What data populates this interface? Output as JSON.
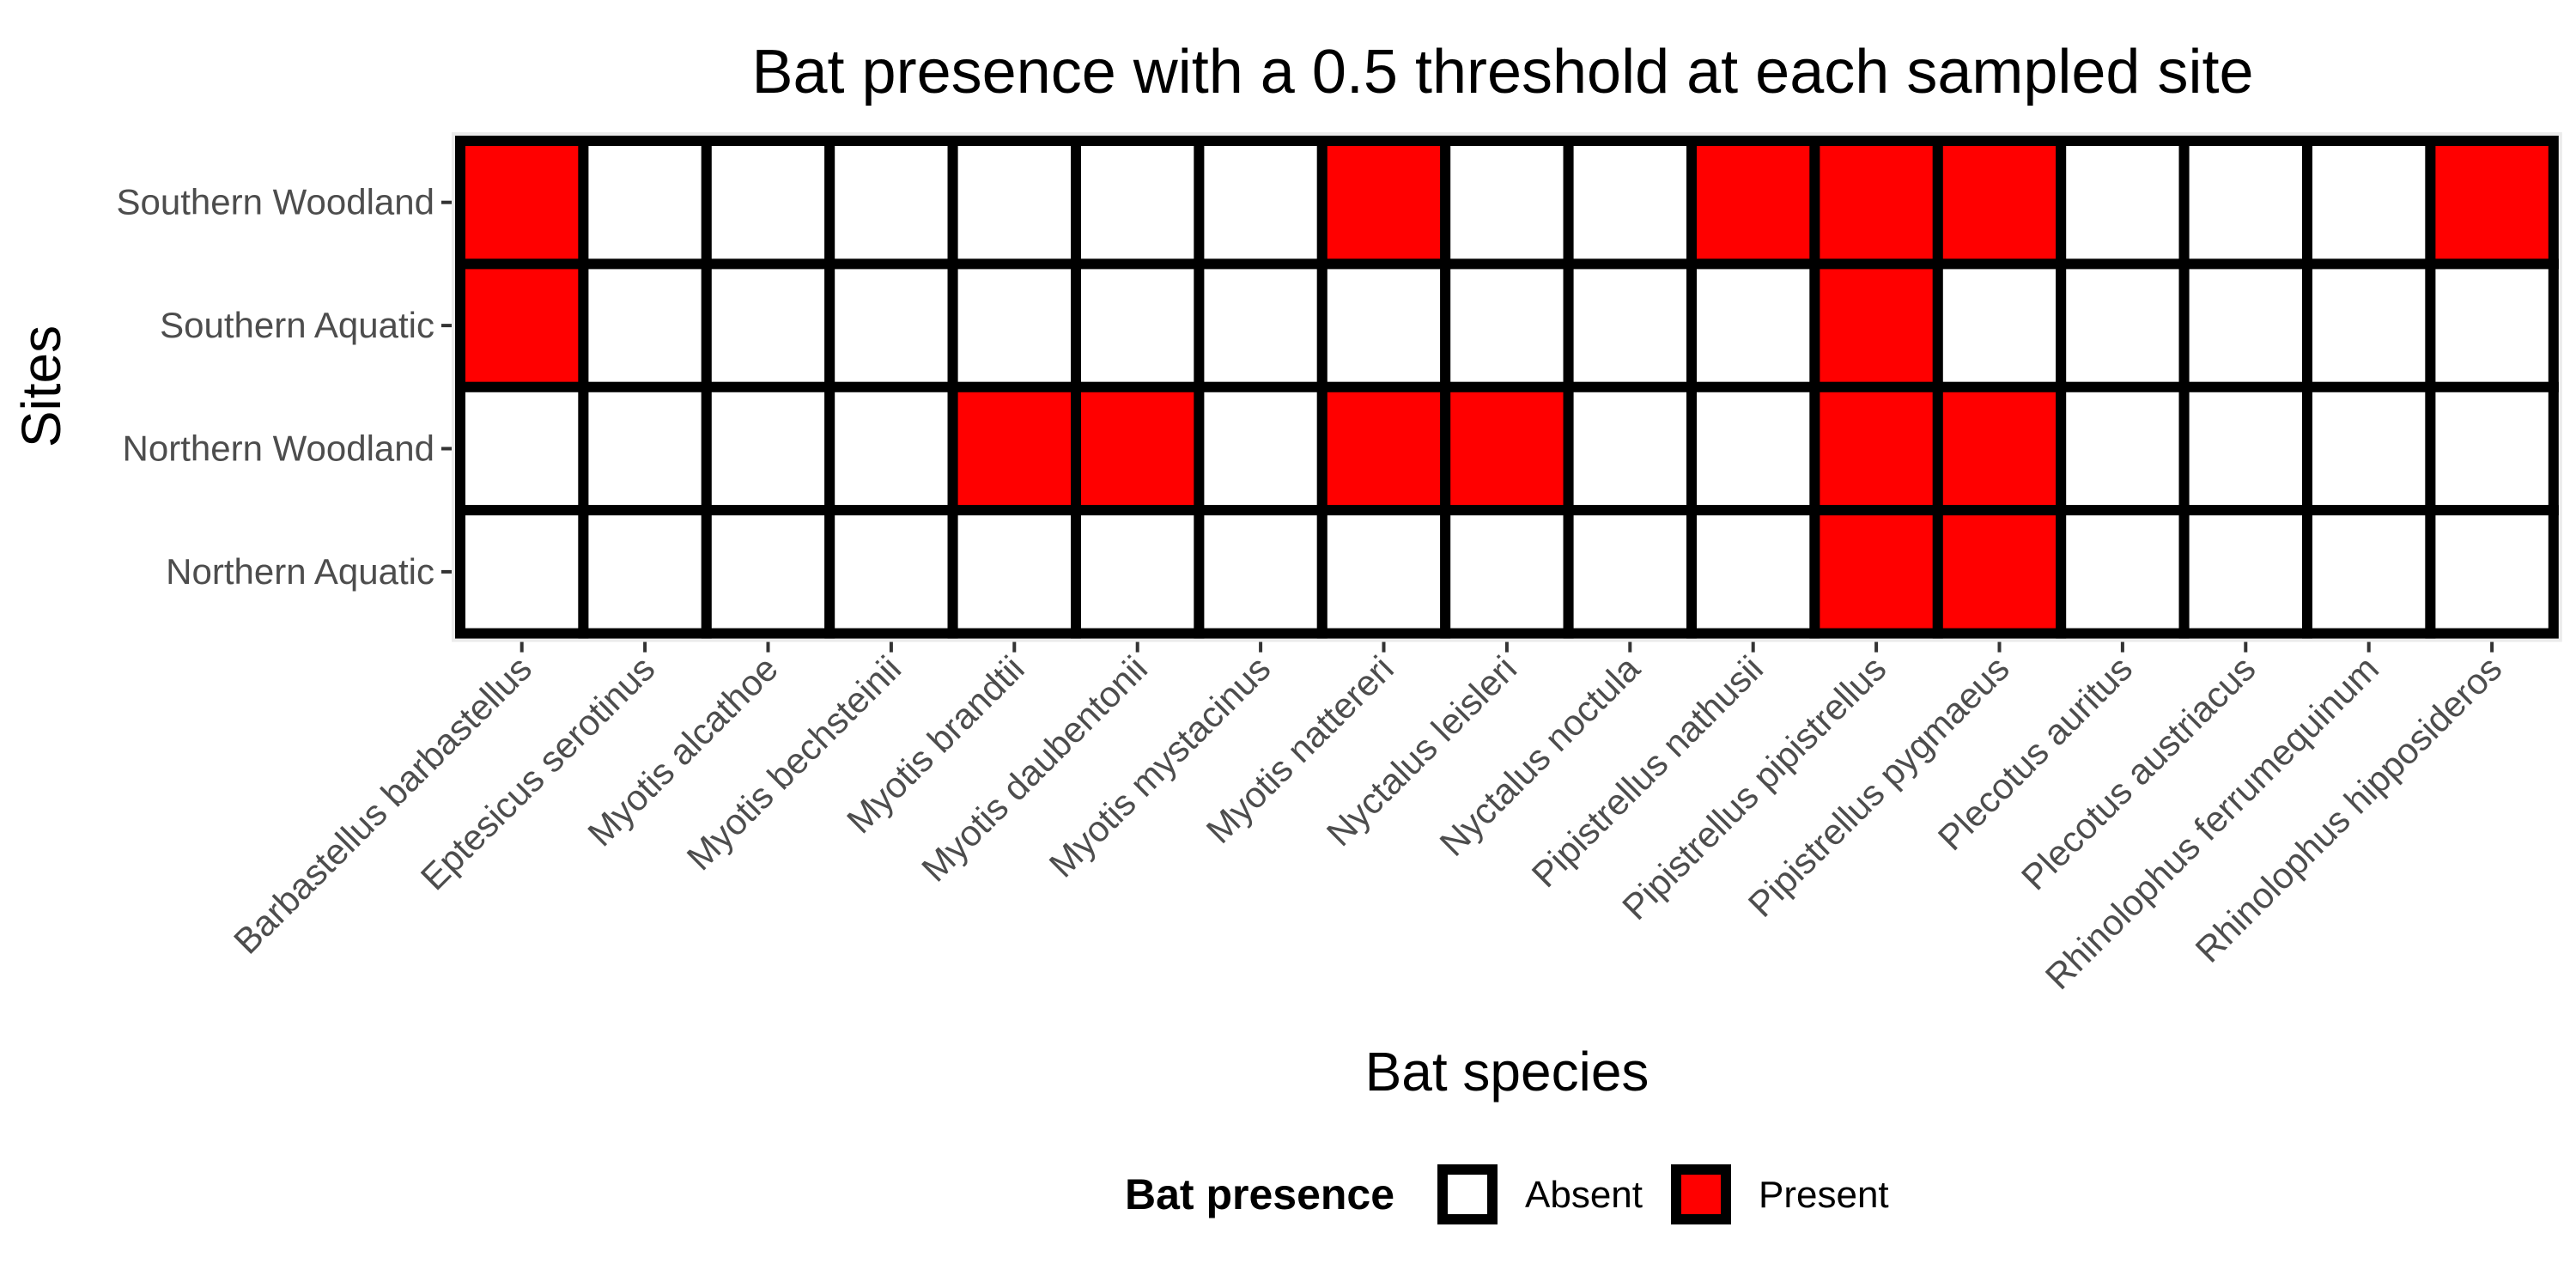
{
  "chart_data": {
    "type": "heatmap",
    "title": "Bat presence with a 0.5 threshold at each sampled site",
    "xlabel": "Bat species",
    "ylabel": "Sites",
    "x_categories": [
      "Barbastellus barbastellus",
      "Eptesicus serotinus",
      "Myotis alcathoe",
      "Myotis bechsteinii",
      "Myotis brandtii",
      "Myotis daubentonii",
      "Myotis mystacinus",
      "Myotis nattereri",
      "Nyctalus leisleri",
      "Nyctalus noctula",
      "Pipistrellus nathusii",
      "Pipistrellus pipistrellus",
      "Pipistrellus pygmaeus",
      "Plecotus auritus",
      "Plecotus austriacus",
      "Rhinolophus ferrumequinum",
      "Rhinolophus hipposideros"
    ],
    "y_categories": [
      "Southern Woodland",
      "Southern Aquatic",
      "Northern Woodland",
      "Northern Aquatic"
    ],
    "values": [
      [
        1,
        0,
        0,
        0,
        0,
        0,
        0,
        1,
        0,
        0,
        1,
        1,
        1,
        0,
        0,
        0,
        1
      ],
      [
        1,
        0,
        0,
        0,
        0,
        0,
        0,
        0,
        0,
        0,
        0,
        1,
        0,
        0,
        0,
        0,
        0
      ],
      [
        0,
        0,
        0,
        0,
        1,
        1,
        0,
        1,
        1,
        0,
        0,
        1,
        1,
        0,
        0,
        0,
        0
      ],
      [
        0,
        0,
        0,
        0,
        0,
        0,
        0,
        0,
        0,
        0,
        0,
        1,
        1,
        0,
        0,
        0,
        0
      ]
    ],
    "legend": {
      "title": "Bat presence",
      "position": "bottom",
      "entries": [
        {
          "label": "Absent",
          "value": 0,
          "color": "#ffffff"
        },
        {
          "label": "Present",
          "value": 1,
          "color": "#ff0000"
        }
      ]
    },
    "colors": {
      "present": "#ff0000",
      "absent": "#ffffff",
      "border": "#000000",
      "panel_background": "#ebebeb"
    }
  }
}
